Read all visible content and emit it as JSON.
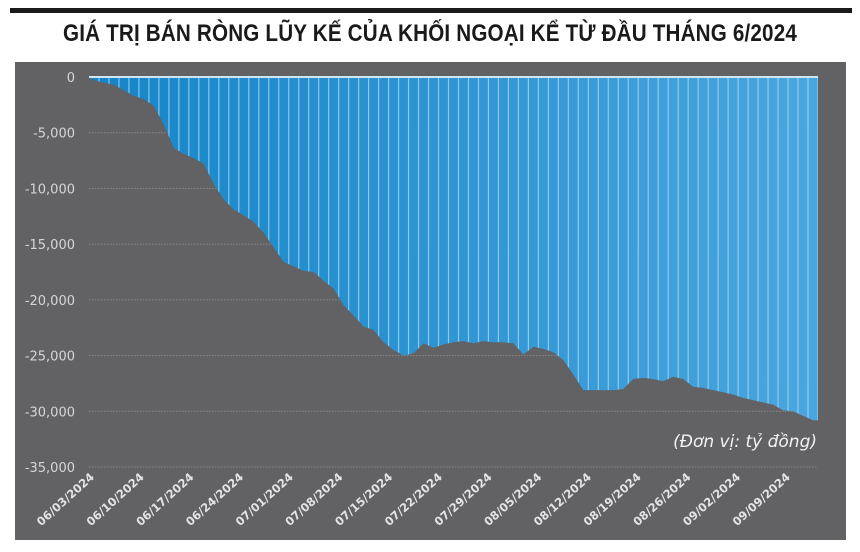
{
  "header": {
    "title": "GIÁ TRỊ BÁN RÒNG LŨY KẾ CỦA KHỐI NGOẠI KỂ TỪ ĐẦU THÁNG 6/2024"
  },
  "colors": {
    "panel_background": "#626264",
    "fill_top": "#1585c8",
    "fill_bottom": "#4aa6de",
    "bar_separator": "#9fd0f0",
    "gridline": "#8a8a8a",
    "title": "#1a1a1a"
  },
  "chart_data": {
    "type": "area",
    "title": "GIÁ TRỊ BÁN RÒNG LŨY KẾ CỦA KHỐI NGOẠI KỂ TỪ ĐẦU THÁNG 6/2024",
    "xlabel": "",
    "ylabel": "",
    "unit_note": "(Đơn vị: tỷ đồng)",
    "ylim": [
      -35000,
      0
    ],
    "yticks": [
      0,
      -5000,
      -10000,
      -15000,
      -20000,
      -25000,
      -30000,
      -35000
    ],
    "ytick_labels": [
      "0",
      "-5,000",
      "-10,000",
      "-15,000",
      "-20,000",
      "-25,000",
      "-30,000",
      "-35,000"
    ],
    "grid": true,
    "legend": null,
    "xtick_labels": [
      "06/03/2024",
      "06/10/2024",
      "06/17/2024",
      "06/24/2024",
      "07/01/2024",
      "07/08/2024",
      "07/15/2024",
      "07/22/2024",
      "07/29/2024",
      "08/05/2024",
      "08/12/2024",
      "08/19/2024",
      "08/26/2024",
      "09/02/2024",
      "09/09/2024"
    ],
    "series": [
      {
        "name": "Giá trị bán ròng lũy kế",
        "x": [
          "06/03",
          "06/04",
          "06/05",
          "06/06",
          "06/07",
          "06/10",
          "06/11",
          "06/12",
          "06/13",
          "06/14",
          "06/17",
          "06/18",
          "06/19",
          "06/20",
          "06/21",
          "06/24",
          "06/25",
          "06/26",
          "06/27",
          "06/28",
          "07/01",
          "07/02",
          "07/03",
          "07/04",
          "07/05",
          "07/08",
          "07/09",
          "07/10",
          "07/11",
          "07/12",
          "07/15",
          "07/16",
          "07/17",
          "07/18",
          "07/19",
          "07/22",
          "07/23",
          "07/24",
          "07/25",
          "07/26",
          "07/29",
          "07/30",
          "07/31",
          "08/01",
          "08/02",
          "08/05",
          "08/06",
          "08/07",
          "08/08",
          "08/09",
          "08/12",
          "08/13",
          "08/14",
          "08/15",
          "08/16",
          "08/19",
          "08/20",
          "08/21",
          "08/22",
          "08/23",
          "08/26",
          "08/27",
          "08/28",
          "08/29",
          "08/30",
          "09/04",
          "09/05",
          "09/06",
          "09/09",
          "09/10",
          "09/11",
          "09/12",
          "09/13"
        ],
        "values": [
          -300,
          -500,
          -700,
          -1200,
          -1700,
          -2000,
          -2600,
          -4300,
          -6400,
          -6900,
          -7300,
          -7800,
          -9600,
          -11000,
          -11900,
          -12400,
          -13000,
          -14000,
          -15300,
          -16600,
          -17000,
          -17400,
          -17500,
          -18300,
          -19000,
          -20500,
          -21400,
          -22400,
          -22700,
          -23800,
          -24500,
          -25000,
          -24800,
          -23900,
          -24300,
          -24000,
          -23800,
          -23700,
          -23900,
          -23700,
          -23800,
          -23800,
          -23900,
          -24900,
          -24200,
          -24400,
          -24700,
          -25400,
          -26700,
          -28100,
          -28100,
          -28100,
          -28100,
          -28000,
          -27100,
          -27000,
          -27100,
          -27300,
          -26900,
          -27100,
          -27800,
          -27900,
          -28100,
          -28300,
          -28500,
          -28800,
          -29000,
          -29200,
          -29400,
          -29900,
          -30000,
          -30400,
          -30800
        ]
      }
    ]
  }
}
